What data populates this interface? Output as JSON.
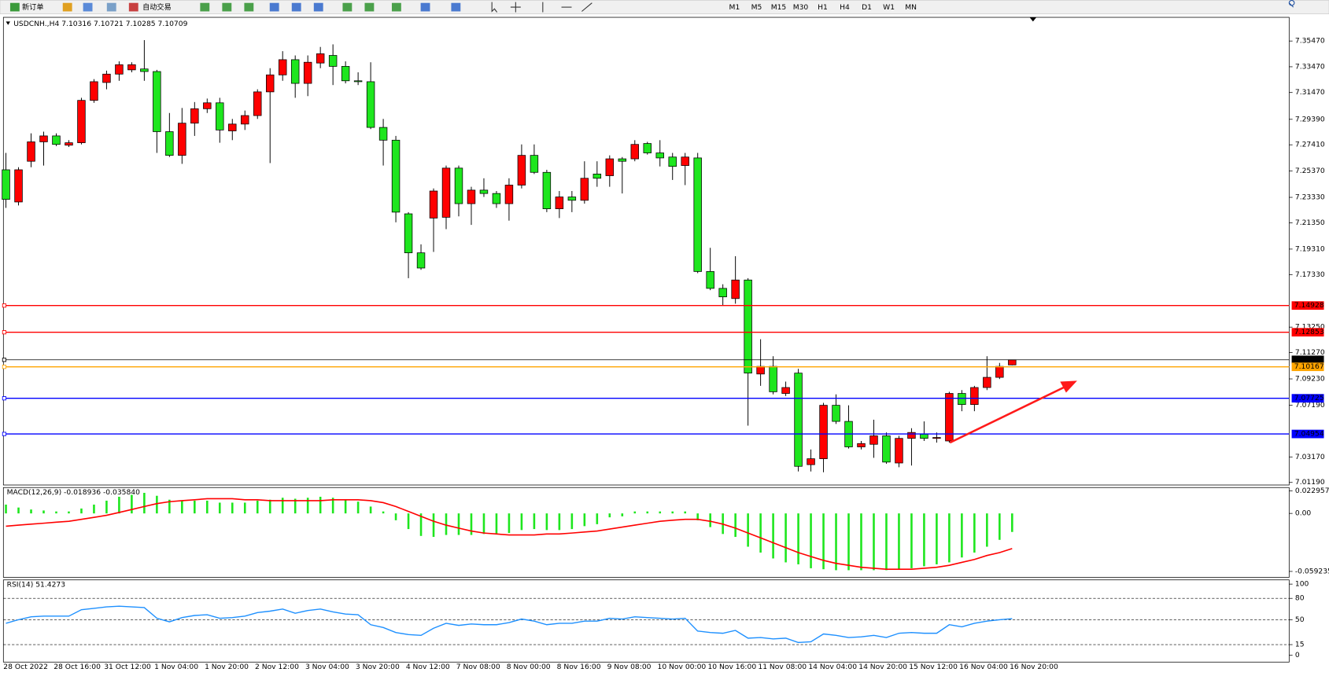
{
  "toolbar": {
    "buttons": [
      "新订单",
      "自动交易"
    ],
    "timeframes": [
      "M1",
      "M5",
      "M15",
      "M30",
      "H1",
      "H4",
      "D1",
      "W1",
      "MN"
    ]
  },
  "chart_data": [
    {
      "type": "candlestick",
      "title": "USDCNH.,H4  7.10316 7.10721 7.10285 7.10709",
      "categories": [
        "28 Oct 2022",
        null,
        null,
        null,
        "28 Oct 16:00",
        null,
        null,
        null,
        "31 Oct 12:00",
        null,
        null,
        null,
        "1 Nov 04:00",
        null,
        null,
        null,
        "1 Nov 20:00",
        null,
        null,
        null,
        "2 Nov 12:00",
        null,
        null,
        null,
        "3 Nov 04:00",
        null,
        null,
        null,
        "3 Nov 20:00",
        null,
        null,
        null,
        "4 Nov 12:00",
        null,
        null,
        null,
        "7 Nov 08:00",
        null,
        null,
        null,
        "8 Nov 00:00",
        null,
        null,
        null,
        "8 Nov 16:00",
        null,
        null,
        null,
        "9 Nov 08:00",
        null,
        null,
        null,
        "10 Nov 00:00",
        null,
        null,
        null,
        "10 Nov 16:00",
        null,
        null,
        null,
        "11 Nov 08:00",
        null,
        null,
        null,
        "14 Nov 04:00",
        null,
        null,
        null,
        "14 Nov 20:00",
        null,
        null,
        null,
        "15 Nov 12:00",
        null,
        null,
        null,
        "16 Nov 04:00",
        null,
        null,
        null,
        "16 Nov 20:00"
      ],
      "open": [
        7.2547,
        7.2297,
        7.2613,
        7.2764,
        7.281,
        7.2738,
        7.2757,
        7.3086,
        7.3225,
        7.329,
        7.3323,
        7.333,
        7.331,
        7.2843,
        7.2659,
        7.2909,
        7.3021,
        7.3067,
        7.2849,
        7.2902,
        7.2968,
        7.3152,
        7.3284,
        7.3402,
        7.3218,
        7.3376,
        7.3435,
        7.335,
        7.3238,
        7.3231,
        7.2876,
        7.2777,
        7.2205,
        7.1902,
        7.2172,
        7.2178,
        7.256,
        7.2284,
        7.2389,
        7.2363,
        7.2284,
        7.2428,
        7.2659,
        7.2527,
        7.2244,
        7.2336,
        7.231,
        7.2514,
        7.2501,
        7.2632,
        7.2632,
        7.2751,
        7.2678,
        7.2646,
        7.258,
        7.2639,
        7.1757,
        7.1626,
        7.1547,
        7.1691,
        7.0961,
        7.102,
        7.081,
        7.0968,
        7.0257,
        7.0303,
        7.0718,
        7.0593,
        7.0395,
        7.0415,
        7.0481,
        7.027,
        7.0461,
        7.0494,
        7.0461,
        7.0441,
        7.081,
        7.0724,
        7.0856,
        7.0935,
        7.10316
      ],
      "high": [
        7.2678,
        7.2567,
        7.283,
        7.2843,
        7.283,
        7.2777,
        7.3106,
        7.3251,
        7.3317,
        7.3389,
        7.3382,
        7.3554,
        7.3323,
        7.2988,
        7.3027,
        7.3073,
        7.31,
        7.3106,
        7.2942,
        7.3007,
        7.3172,
        7.3336,
        7.3468,
        7.3435,
        7.3435,
        7.3501,
        7.3521,
        7.3389,
        7.3304,
        7.3382,
        7.2942,
        7.281,
        7.2218,
        7.1968,
        7.2402,
        7.258,
        7.258,
        7.2415,
        7.2481,
        7.2382,
        7.2481,
        7.2744,
        7.2744,
        7.2547,
        7.2382,
        7.2382,
        7.2613,
        7.2613,
        7.2659,
        7.2646,
        7.2777,
        7.2764,
        7.2777,
        7.2678,
        7.2678,
        7.2678,
        7.1941,
        7.1658,
        7.1876,
        7.1705,
        7.1231,
        7.1099,
        7.0902,
        7.1001,
        7.0375,
        7.0737,
        7.0803,
        7.0718,
        7.0441,
        7.0606,
        7.0507,
        7.0481,
        7.054,
        7.0593,
        7.0507,
        7.0823,
        7.0836,
        7.0869,
        7.1099,
        7.1047,
        7.10721
      ],
      "low": [
        7.2251,
        7.227,
        7.2567,
        7.258,
        7.2731,
        7.2724,
        7.2744,
        7.3067,
        7.3172,
        7.3238,
        7.3304,
        7.3238,
        7.2678,
        7.2646,
        7.2593,
        7.281,
        7.2988,
        7.2757,
        7.2777,
        7.2856,
        7.2942,
        7.2599,
        7.3238,
        7.3106,
        7.3119,
        7.3336,
        7.3205,
        7.3218,
        7.3205,
        7.2863,
        7.258,
        7.2139,
        7.1705,
        7.177,
        7.1909,
        7.2086,
        7.2185,
        7.2119,
        7.2336,
        7.2251,
        7.2152,
        7.2402,
        7.2514,
        7.2218,
        7.2172,
        7.2218,
        7.2284,
        7.2415,
        7.2415,
        7.2363,
        7.2613,
        7.2665,
        7.2573,
        7.2468,
        7.2428,
        7.1744,
        7.1612,
        7.1494,
        7.1507,
        7.056,
        7.0869,
        7.0803,
        7.079,
        7.0204,
        7.0204,
        7.0198,
        7.0573,
        7.0382,
        7.0375,
        7.031,
        7.0264,
        7.0237,
        7.025,
        7.0441,
        7.0428,
        7.0428,
        7.0672,
        7.0672,
        7.0836,
        7.0922,
        7.10285
      ],
      "close": [
        7.2317,
        7.2547,
        7.2764,
        7.281,
        7.2744,
        7.2757,
        7.3086,
        7.3231,
        7.329,
        7.3363,
        7.3363,
        7.331,
        7.2843,
        7.2659,
        7.2909,
        7.3021,
        7.3067,
        7.2856,
        7.2902,
        7.2968,
        7.3152,
        7.3284,
        7.3402,
        7.3218,
        7.3382,
        7.3448,
        7.335,
        7.3238,
        7.3231,
        7.2876,
        7.2777,
        7.2218,
        7.1902,
        7.1784,
        7.2382,
        7.256,
        7.2284,
        7.2389,
        7.2363,
        7.2284,
        7.2428,
        7.2659,
        7.2527,
        7.2244,
        7.2336,
        7.231,
        7.2481,
        7.2481,
        7.2632,
        7.2613,
        7.2744,
        7.2678,
        7.2639,
        7.2573,
        7.2646,
        7.1757,
        7.1626,
        7.156,
        7.1691,
        7.0968,
        7.102,
        7.0823,
        7.0856,
        7.0244,
        7.0303,
        7.0718,
        7.0593,
        7.0395,
        7.0421,
        7.0481,
        7.0277,
        7.0461,
        7.0507,
        7.0461,
        7.0468,
        7.081,
        7.0724,
        7.0856,
        7.0935,
        7.102,
        7.10709
      ],
      "up_color": "#ff0000",
      "down_color": "#1ee61e",
      "ylim": [
        7.0099,
        7.3731
      ],
      "yticks": [
        {
          "value": 7.3547,
          "label": "7.35470"
        },
        {
          "value": 7.3347,
          "label": "7.33470"
        },
        {
          "value": 7.3147,
          "label": "7.31470"
        },
        {
          "value": 7.2939,
          "label": "7.29390"
        },
        {
          "value": 7.2741,
          "label": "7.27410"
        },
        {
          "value": 7.2537,
          "label": "7.25370"
        },
        {
          "value": 7.2333,
          "label": "7.23330"
        },
        {
          "value": 7.2135,
          "label": "7.21350"
        },
        {
          "value": 7.1931,
          "label": "7.19310"
        },
        {
          "value": 7.1733,
          "label": "7.17330"
        },
        {
          "value": 7.1325,
          "label": "7.13250"
        },
        {
          "value": 7.1127,
          "label": "7.11270"
        },
        {
          "value": 7.0923,
          "label": "7.09230"
        },
        {
          "value": 7.0719,
          "label": "7.07190"
        },
        {
          "value": 7.0317,
          "label": "7.03170"
        },
        {
          "value": 7.0119,
          "label": "7.01190"
        }
      ],
      "levels": [
        {
          "value": 7.14928,
          "color": "#ff0000"
        },
        {
          "value": 7.12853,
          "color": "#ff0000"
        },
        {
          "value": 7.10709,
          "color": "#000000"
        },
        {
          "value": 7.10167,
          "color": "#ffa500"
        },
        {
          "value": 7.07725,
          "color": "#0000ff"
        },
        {
          "value": 7.04954,
          "color": "#0000ff"
        }
      ]
    },
    {
      "type": "macd",
      "title": "MACD(12,26,9) -0.018936 -0.035840",
      "series": [
        {
          "color": "#1ee61e",
          "values": [
            0.009,
            0.006,
            0.004,
            0.003,
            0.002,
            0.002,
            0.005,
            0.009,
            0.013,
            0.017,
            0.019,
            0.021,
            0.018,
            0.014,
            0.013,
            0.013,
            0.013,
            0.011,
            0.011,
            0.011,
            0.013,
            0.014,
            0.016,
            0.015,
            0.016,
            0.017,
            0.016,
            0.014,
            0.012,
            0.007,
            0.002,
            -0.007,
            -0.016,
            -0.023,
            -0.024,
            -0.022,
            -0.022,
            -0.022,
            -0.021,
            -0.021,
            -0.02,
            -0.017,
            -0.016,
            -0.017,
            -0.017,
            -0.016,
            -0.013,
            -0.011,
            -0.004,
            -0.003,
            0.002,
            0.002,
            0.002,
            0.002,
            0.002,
            -0.007,
            -0.014,
            -0.021,
            -0.024,
            -0.034,
            -0.04,
            -0.046,
            -0.05,
            -0.052,
            -0.056,
            -0.057,
            -0.058,
            -0.058,
            -0.058,
            -0.058,
            -0.058,
            -0.057,
            -0.056,
            -0.054,
            -0.052,
            -0.05,
            -0.045,
            -0.04,
            -0.034,
            -0.027,
            -0.018936
          ]
        },
        {
          "color": "#ff0000",
          "values": [
            -0.013,
            -0.012,
            -0.011,
            -0.01,
            -0.009,
            -0.008,
            -0.006,
            -0.004,
            -0.002,
            0.001,
            0.004,
            0.007,
            0.01,
            0.012,
            0.013,
            0.014,
            0.015,
            0.015,
            0.015,
            0.014,
            0.014,
            0.013,
            0.013,
            0.013,
            0.013,
            0.013,
            0.014,
            0.014,
            0.014,
            0.013,
            0.011,
            0.007,
            0.002,
            -0.003,
            -0.008,
            -0.012,
            -0.015,
            -0.018,
            -0.02,
            -0.021,
            -0.022,
            -0.022,
            -0.022,
            -0.021,
            -0.021,
            -0.02,
            -0.019,
            -0.018,
            -0.016,
            -0.014,
            -0.012,
            -0.01,
            -0.008,
            -0.007,
            -0.006,
            -0.006,
            -0.008,
            -0.011,
            -0.015,
            -0.02,
            -0.025,
            -0.03,
            -0.035,
            -0.04,
            -0.044,
            -0.048,
            -0.051,
            -0.053,
            -0.055,
            -0.056,
            -0.057,
            -0.057,
            -0.057,
            -0.056,
            -0.055,
            -0.053,
            -0.05,
            -0.047,
            -0.043,
            -0.04,
            -0.03584
          ]
        }
      ],
      "ylim": [
        -0.059235,
        0.022957
      ],
      "yticks": [
        0.022957,
        {
          "value": 0,
          "label": "0.00"
        },
        -0.059235
      ]
    },
    {
      "type": "rsi",
      "title": "RSI(14) 51.4273",
      "series": [
        {
          "color": "#1e90ff",
          "values": [
            45,
            50,
            54,
            55,
            55,
            55,
            64,
            66,
            68,
            69,
            68,
            67,
            52,
            47,
            53,
            56,
            57,
            52,
            53,
            55,
            60,
            62,
            65,
            59,
            63,
            65,
            61,
            58,
            57,
            43,
            39,
            32,
            29,
            28,
            38,
            45,
            42,
            44,
            43,
            43,
            46,
            51,
            48,
            43,
            45,
            45,
            48,
            48,
            52,
            51,
            54,
            53,
            52,
            51,
            52,
            34,
            32,
            31,
            35,
            24,
            25,
            23,
            24,
            18,
            19,
            30,
            28,
            25,
            26,
            28,
            25,
            31,
            32,
            31,
            31,
            43,
            40,
            45,
            48,
            50,
            51.4273
          ]
        }
      ],
      "ylim": [
        0,
        100
      ],
      "yticks": [
        100,
        80,
        50,
        15,
        0
      ],
      "levels": [
        80,
        50,
        15
      ]
    }
  ]
}
